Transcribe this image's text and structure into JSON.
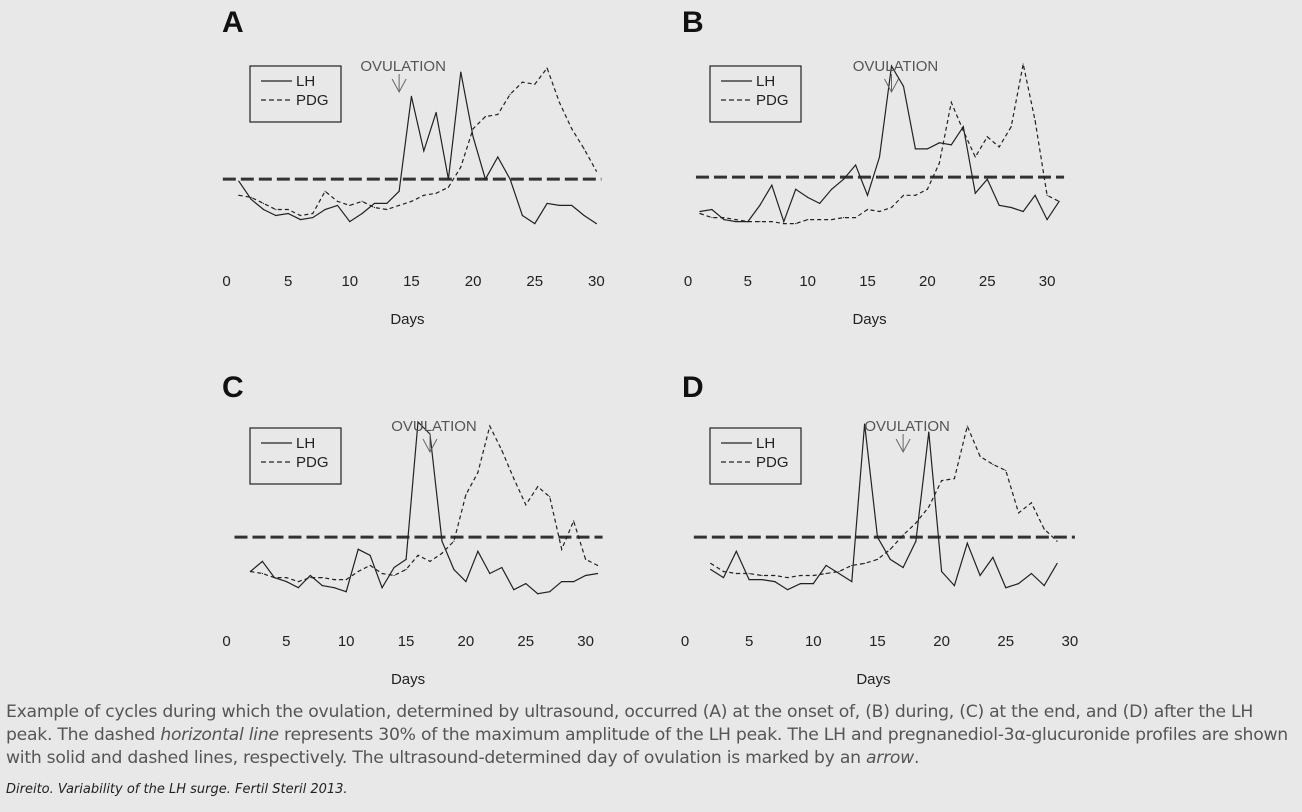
{
  "chart_data": [
    {
      "type": "line",
      "panel_label": "A",
      "xlabel": "Days",
      "x_ticks": [
        0,
        5,
        10,
        15,
        20,
        25,
        30
      ],
      "xlim": [
        0,
        30
      ],
      "ylim": [
        0,
        1
      ],
      "legend": [
        "LH",
        "PDG"
      ],
      "legend_placement": "top-left",
      "grid": false,
      "annotation": {
        "text": "OVULATION",
        "day": 14
      },
      "threshold": 0.41,
      "series": [
        {
          "name": "LH",
          "style": "solid",
          "x": [
            1,
            2,
            3,
            4,
            5,
            6,
            7,
            8,
            9,
            10,
            11,
            12,
            13,
            14,
            15,
            16,
            17,
            18,
            19,
            20,
            21,
            22,
            23,
            24,
            25,
            26,
            27,
            28,
            29,
            30
          ],
          "values": [
            0.4,
            0.31,
            0.26,
            0.23,
            0.24,
            0.21,
            0.22,
            0.26,
            0.28,
            0.2,
            0.24,
            0.29,
            0.29,
            0.35,
            0.82,
            0.55,
            0.74,
            0.41,
            0.94,
            0.62,
            0.41,
            0.52,
            0.41,
            0.23,
            0.19,
            0.29,
            0.28,
            0.28,
            0.23,
            0.19
          ]
        },
        {
          "name": "PDG",
          "style": "dashed",
          "x": [
            1,
            2,
            3,
            4,
            5,
            6,
            7,
            8,
            9,
            10,
            11,
            12,
            13,
            14,
            15,
            16,
            17,
            18,
            19,
            20,
            21,
            22,
            23,
            24,
            25,
            26,
            27,
            28,
            29,
            30
          ],
          "values": [
            0.33,
            0.32,
            0.29,
            0.26,
            0.26,
            0.23,
            0.24,
            0.35,
            0.3,
            0.28,
            0.3,
            0.27,
            0.26,
            0.28,
            0.3,
            0.33,
            0.34,
            0.37,
            0.47,
            0.66,
            0.72,
            0.73,
            0.83,
            0.89,
            0.88,
            0.96,
            0.79,
            0.66,
            0.56,
            0.45
          ]
        }
      ]
    },
    {
      "type": "line",
      "panel_label": "B",
      "xlabel": "Days",
      "x_ticks": [
        0,
        5,
        10,
        15,
        20,
        25,
        30
      ],
      "xlim": [
        0,
        31
      ],
      "ylim": [
        0,
        1
      ],
      "legend": [
        "LH",
        "PDG"
      ],
      "legend_placement": "top-left",
      "grid": false,
      "annotation": {
        "text": "OVULATION",
        "day": 17
      },
      "threshold": 0.42,
      "series": [
        {
          "name": "LH",
          "style": "solid",
          "x": [
            1,
            2,
            3,
            4,
            5,
            6,
            7,
            8,
            9,
            10,
            11,
            12,
            13,
            14,
            15,
            16,
            17,
            18,
            19,
            20,
            21,
            22,
            23,
            24,
            25,
            26,
            27,
            28,
            29,
            30,
            31
          ],
          "values": [
            0.25,
            0.26,
            0.21,
            0.2,
            0.2,
            0.28,
            0.38,
            0.2,
            0.36,
            0.32,
            0.29,
            0.36,
            0.41,
            0.48,
            0.33,
            0.52,
            0.97,
            0.87,
            0.56,
            0.56,
            0.59,
            0.58,
            0.67,
            0.34,
            0.41,
            0.28,
            0.27,
            0.25,
            0.33,
            0.21,
            0.3
          ]
        },
        {
          "name": "PDG",
          "style": "dashed",
          "x": [
            1,
            2,
            3,
            4,
            5,
            6,
            7,
            8,
            9,
            10,
            11,
            12,
            13,
            14,
            15,
            16,
            17,
            18,
            19,
            20,
            21,
            22,
            23,
            24,
            25,
            26,
            27,
            28,
            29,
            30,
            31
          ],
          "values": [
            0.24,
            0.22,
            0.22,
            0.21,
            0.2,
            0.2,
            0.2,
            0.19,
            0.19,
            0.21,
            0.21,
            0.21,
            0.22,
            0.22,
            0.26,
            0.25,
            0.27,
            0.33,
            0.33,
            0.36,
            0.49,
            0.79,
            0.65,
            0.52,
            0.62,
            0.57,
            0.67,
            0.98,
            0.7,
            0.33,
            0.3
          ]
        }
      ]
    },
    {
      "type": "line",
      "panel_label": "C",
      "xlabel": "Days",
      "x_ticks": [
        0,
        5,
        10,
        15,
        20,
        25,
        30
      ],
      "xlim": [
        0,
        31
      ],
      "ylim": [
        0,
        1
      ],
      "legend": [
        "LH",
        "PDG"
      ],
      "legend_placement": "top-left",
      "grid": false,
      "annotation": {
        "text": "OVULATION",
        "day": 17
      },
      "threshold": 0.42,
      "series": [
        {
          "name": "LH",
          "style": "solid",
          "x": [
            2,
            3,
            4,
            5,
            6,
            7,
            8,
            9,
            10,
            11,
            12,
            13,
            14,
            15,
            16,
            17,
            18,
            19,
            20,
            21,
            22,
            23,
            24,
            25,
            26,
            27,
            28,
            29,
            30,
            31
          ],
          "values": [
            0.25,
            0.3,
            0.22,
            0.2,
            0.17,
            0.23,
            0.18,
            0.17,
            0.15,
            0.36,
            0.33,
            0.17,
            0.27,
            0.31,
            0.99,
            0.93,
            0.4,
            0.26,
            0.2,
            0.35,
            0.24,
            0.27,
            0.16,
            0.19,
            0.14,
            0.15,
            0.2,
            0.2,
            0.23,
            0.24
          ]
        },
        {
          "name": "PDG",
          "style": "dashed",
          "x": [
            2,
            3,
            4,
            5,
            6,
            7,
            8,
            9,
            10,
            11,
            12,
            13,
            14,
            15,
            16,
            17,
            18,
            19,
            20,
            21,
            22,
            23,
            24,
            25,
            26,
            27,
            28,
            29,
            30,
            31
          ],
          "values": [
            0.25,
            0.24,
            0.22,
            0.22,
            0.2,
            0.22,
            0.22,
            0.21,
            0.21,
            0.25,
            0.28,
            0.24,
            0.23,
            0.26,
            0.33,
            0.3,
            0.34,
            0.4,
            0.63,
            0.74,
            0.97,
            0.85,
            0.71,
            0.58,
            0.67,
            0.62,
            0.36,
            0.5,
            0.31,
            0.28
          ]
        }
      ]
    },
    {
      "type": "line",
      "panel_label": "D",
      "xlabel": "Days",
      "x_ticks": [
        0,
        5,
        10,
        15,
        20,
        25,
        30
      ],
      "xlim": [
        0,
        30
      ],
      "ylim": [
        0,
        1
      ],
      "legend": [
        "LH",
        "PDG"
      ],
      "legend_placement": "top-left",
      "grid": false,
      "annotation": {
        "text": "OVULATION",
        "day": 17
      },
      "threshold": 0.42,
      "series": [
        {
          "name": "LH",
          "style": "solid",
          "x": [
            2,
            3,
            4,
            5,
            6,
            7,
            8,
            9,
            10,
            11,
            12,
            13,
            14,
            15,
            16,
            17,
            18,
            19,
            20,
            21,
            22,
            23,
            24,
            25,
            26,
            27,
            28,
            29
          ],
          "values": [
            0.26,
            0.22,
            0.35,
            0.21,
            0.21,
            0.2,
            0.16,
            0.19,
            0.19,
            0.28,
            0.24,
            0.2,
            0.98,
            0.42,
            0.31,
            0.27,
            0.4,
            0.94,
            0.25,
            0.18,
            0.39,
            0.23,
            0.32,
            0.17,
            0.19,
            0.24,
            0.18,
            0.29
          ]
        },
        {
          "name": "PDG",
          "style": "dashed",
          "x": [
            2,
            3,
            4,
            5,
            6,
            7,
            8,
            9,
            10,
            11,
            12,
            13,
            14,
            15,
            16,
            17,
            18,
            19,
            20,
            21,
            22,
            23,
            24,
            25,
            26,
            27,
            28,
            29
          ],
          "values": [
            0.29,
            0.25,
            0.24,
            0.24,
            0.23,
            0.23,
            0.22,
            0.23,
            0.23,
            0.24,
            0.25,
            0.28,
            0.29,
            0.31,
            0.36,
            0.43,
            0.49,
            0.57,
            0.7,
            0.71,
            0.97,
            0.82,
            0.78,
            0.75,
            0.54,
            0.59,
            0.46,
            0.4
          ]
        }
      ]
    }
  ],
  "caption": {
    "part1": "Example of cycles during which the ovulation, determined by ultrasound, occurred (A) at the onset of, (B) during, (C) at the end, and (D) after the LH peak. The dashed ",
    "emph1": "horizontal line",
    "part2": " represents 30% of the maximum amplitude of the LH peak. The LH and pregnanediol-3α-glucuronide profiles are shown with solid and dashed lines, respectively. The ultrasound-determined day of ovulation is marked by an ",
    "emph2": "arrow",
    "part3": "."
  },
  "credit": "Direito. Variability of the LH surge. Fertil Steril 2013."
}
